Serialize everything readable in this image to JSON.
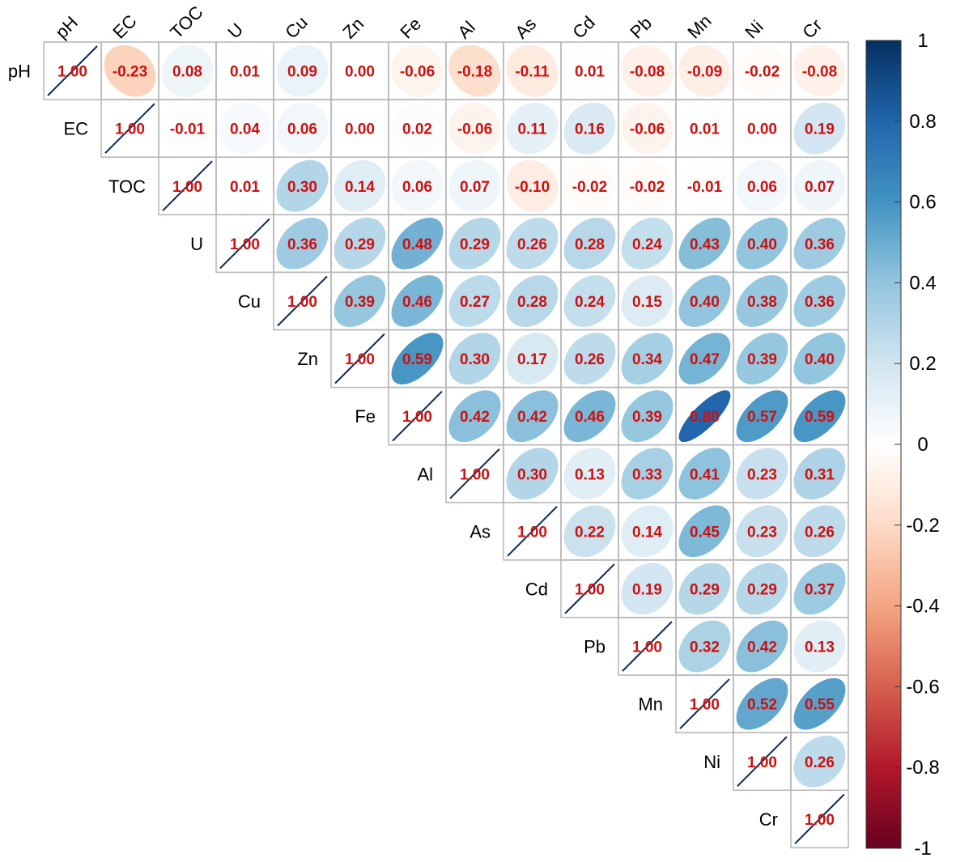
{
  "chart_data": {
    "type": "heatmap",
    "variables": [
      "pH",
      "EC",
      "TOC",
      "U",
      "Cu",
      "Zn",
      "Fe",
      "Al",
      "As",
      "Cd",
      "Pb",
      "Mn",
      "Ni",
      "Cr"
    ],
    "matrix": [
      [
        1.0,
        -0.23,
        0.08,
        0.01,
        0.09,
        0.0,
        -0.06,
        -0.18,
        -0.11,
        0.01,
        -0.08,
        -0.09,
        -0.02,
        -0.08
      ],
      [
        -0.23,
        1.0,
        -0.01,
        0.04,
        0.06,
        0.0,
        0.02,
        -0.06,
        0.11,
        0.16,
        -0.06,
        0.01,
        0.0,
        0.19
      ],
      [
        0.08,
        -0.01,
        1.0,
        0.01,
        0.3,
        0.14,
        0.06,
        0.07,
        -0.1,
        -0.02,
        -0.02,
        -0.01,
        0.06,
        0.07
      ],
      [
        0.01,
        0.04,
        0.01,
        1.0,
        0.36,
        0.29,
        0.48,
        0.29,
        0.26,
        0.28,
        0.24,
        0.43,
        0.4,
        0.36
      ],
      [
        0.09,
        0.06,
        0.3,
        0.36,
        1.0,
        0.39,
        0.46,
        0.27,
        0.28,
        0.24,
        0.15,
        0.4,
        0.38,
        0.36
      ],
      [
        0.0,
        0.0,
        0.14,
        0.29,
        0.39,
        1.0,
        0.59,
        0.3,
        0.17,
        0.26,
        0.34,
        0.47,
        0.39,
        0.4
      ],
      [
        -0.06,
        0.02,
        0.06,
        0.48,
        0.46,
        0.59,
        1.0,
        0.42,
        0.42,
        0.46,
        0.39,
        0.8,
        0.57,
        0.59
      ],
      [
        -0.18,
        -0.06,
        0.07,
        0.29,
        0.27,
        0.3,
        0.42,
        1.0,
        0.3,
        0.13,
        0.33,
        0.41,
        0.23,
        0.31
      ],
      [
        -0.11,
        0.11,
        -0.1,
        0.26,
        0.28,
        0.17,
        0.42,
        0.3,
        1.0,
        0.22,
        0.14,
        0.45,
        0.23,
        0.26
      ],
      [
        0.01,
        0.16,
        -0.02,
        0.28,
        0.24,
        0.26,
        0.46,
        0.13,
        0.22,
        1.0,
        0.19,
        0.29,
        0.29,
        0.37
      ],
      [
        -0.08,
        -0.06,
        -0.02,
        0.24,
        0.15,
        0.34,
        0.39,
        0.33,
        0.14,
        0.19,
        1.0,
        0.32,
        0.42,
        0.13
      ],
      [
        -0.09,
        0.01,
        -0.01,
        0.43,
        0.4,
        0.47,
        0.8,
        0.41,
        0.45,
        0.29,
        0.32,
        1.0,
        0.52,
        0.55
      ],
      [
        -0.02,
        0.0,
        0.06,
        0.4,
        0.38,
        0.39,
        0.57,
        0.23,
        0.23,
        0.29,
        0.42,
        0.52,
        1.0,
        0.26
      ],
      [
        -0.08,
        0.19,
        0.07,
        0.36,
        0.36,
        0.4,
        0.59,
        0.31,
        0.26,
        0.37,
        0.13,
        0.55,
        0.26,
        1.0
      ]
    ],
    "display": "upper-triangle ellipses with coefficient labels",
    "colorbar": {
      "ticks": [
        "1",
        "0.8",
        "0.6",
        "0.4",
        "0.2",
        "0",
        "-0.2",
        "-0.4",
        "-0.6",
        "-0.8",
        "-1"
      ],
      "range": [
        -1,
        1
      ],
      "low_color": "#67001f",
      "mid_color": "#ffffff",
      "high_color": "#053061"
    },
    "label_color": "#cc1111",
    "grid": true
  }
}
